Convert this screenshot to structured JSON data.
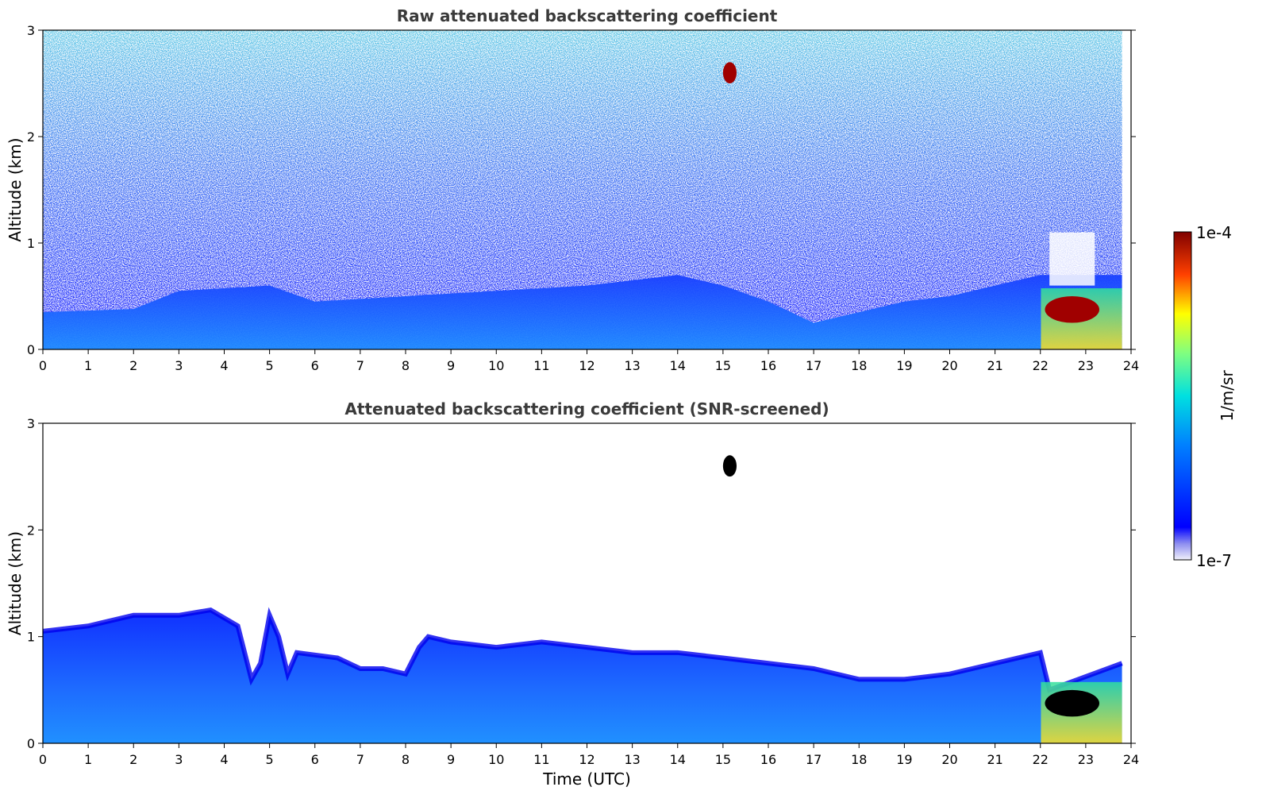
{
  "chart_data": [
    {
      "type": "heatmap",
      "title": "Raw attenuated backscattering coefficient",
      "xlabel": "",
      "ylabel": "Altitude (km)",
      "xlim": [
        0,
        24
      ],
      "ylim": [
        0,
        3
      ],
      "x_ticks": [
        "0",
        "1",
        "2",
        "3",
        "4",
        "5",
        "6",
        "7",
        "8",
        "9",
        "10",
        "11",
        "12",
        "13",
        "14",
        "15",
        "16",
        "17",
        "18",
        "19",
        "20",
        "21",
        "22",
        "23",
        "24"
      ],
      "y_ticks": [
        "0",
        "1",
        "2",
        "3"
      ],
      "data_end_time": 23.8,
      "boundary_layer_top_km": [
        [
          0,
          0.35
        ],
        [
          2,
          0.38
        ],
        [
          3,
          0.55
        ],
        [
          5,
          0.6
        ],
        [
          6,
          0.45
        ],
        [
          8,
          0.5
        ],
        [
          10,
          0.55
        ],
        [
          12,
          0.6
        ],
        [
          14,
          0.7
        ],
        [
          15,
          0.6
        ],
        [
          16,
          0.45
        ],
        [
          17,
          0.25
        ],
        [
          18,
          0.35
        ],
        [
          19,
          0.45
        ],
        [
          20,
          0.5
        ],
        [
          21,
          0.6
        ],
        [
          22,
          0.7
        ],
        [
          23.8,
          0.7
        ]
      ],
      "features": [
        {
          "name": "high-altitude cloud",
          "t": [
            15.0,
            15.3
          ],
          "alt_km": [
            2.5,
            2.7
          ],
          "level": "1e-4"
        },
        {
          "name": "low cloud",
          "t": [
            22.1,
            23.3
          ],
          "alt_km": [
            0.25,
            0.5
          ],
          "level": "1e-4"
        },
        {
          "name": "signal gap",
          "t": [
            22.2,
            23.2
          ],
          "alt_km": [
            0.6,
            1.1
          ],
          "level": "none"
        }
      ]
    },
    {
      "type": "heatmap",
      "title": "Attenuated backscattering coefficient (SNR-screened)",
      "xlabel": "Time (UTC)",
      "ylabel": "Altitude (km)",
      "xlim": [
        0,
        24
      ],
      "ylim": [
        0,
        3
      ],
      "x_ticks": [
        "0",
        "1",
        "2",
        "3",
        "4",
        "5",
        "6",
        "7",
        "8",
        "9",
        "10",
        "11",
        "12",
        "13",
        "14",
        "15",
        "16",
        "17",
        "18",
        "19",
        "20",
        "21",
        "22",
        "23",
        "24"
      ],
      "y_ticks": [
        "0",
        "1",
        "2",
        "3"
      ],
      "data_end_time": 23.8,
      "layer_top_km": [
        [
          0,
          1.05
        ],
        [
          1,
          1.1
        ],
        [
          2,
          1.2
        ],
        [
          3,
          1.2
        ],
        [
          3.7,
          1.25
        ],
        [
          4.3,
          1.1
        ],
        [
          4.6,
          0.6
        ],
        [
          4.8,
          0.75
        ],
        [
          5.0,
          1.2
        ],
        [
          5.2,
          1.0
        ],
        [
          5.4,
          0.65
        ],
        [
          5.6,
          0.85
        ],
        [
          6.5,
          0.8
        ],
        [
          7.0,
          0.7
        ],
        [
          7.5,
          0.7
        ],
        [
          8.0,
          0.65
        ],
        [
          8.3,
          0.9
        ],
        [
          8.5,
          1.0
        ],
        [
          9.0,
          0.95
        ],
        [
          10,
          0.9
        ],
        [
          11,
          0.95
        ],
        [
          12,
          0.9
        ],
        [
          13,
          0.85
        ],
        [
          14,
          0.85
        ],
        [
          15,
          0.8
        ],
        [
          16,
          0.75
        ],
        [
          17,
          0.7
        ],
        [
          18,
          0.6
        ],
        [
          19,
          0.6
        ],
        [
          20,
          0.65
        ],
        [
          21,
          0.75
        ],
        [
          22,
          0.85
        ],
        [
          22.2,
          0.5
        ],
        [
          23.8,
          0.75
        ]
      ],
      "features": [
        {
          "name": "high-altitude cloud",
          "t": [
            15.0,
            15.3
          ],
          "alt_km": [
            2.5,
            2.7
          ],
          "level": "saturated"
        },
        {
          "name": "low cloud",
          "t": [
            22.1,
            23.3
          ],
          "alt_km": [
            0.25,
            0.5
          ],
          "level": "saturated"
        }
      ]
    }
  ],
  "colorbar": {
    "label": "1/m/sr",
    "max_label": "1e-4",
    "min_label": "1e-7",
    "colormap": "jet"
  }
}
